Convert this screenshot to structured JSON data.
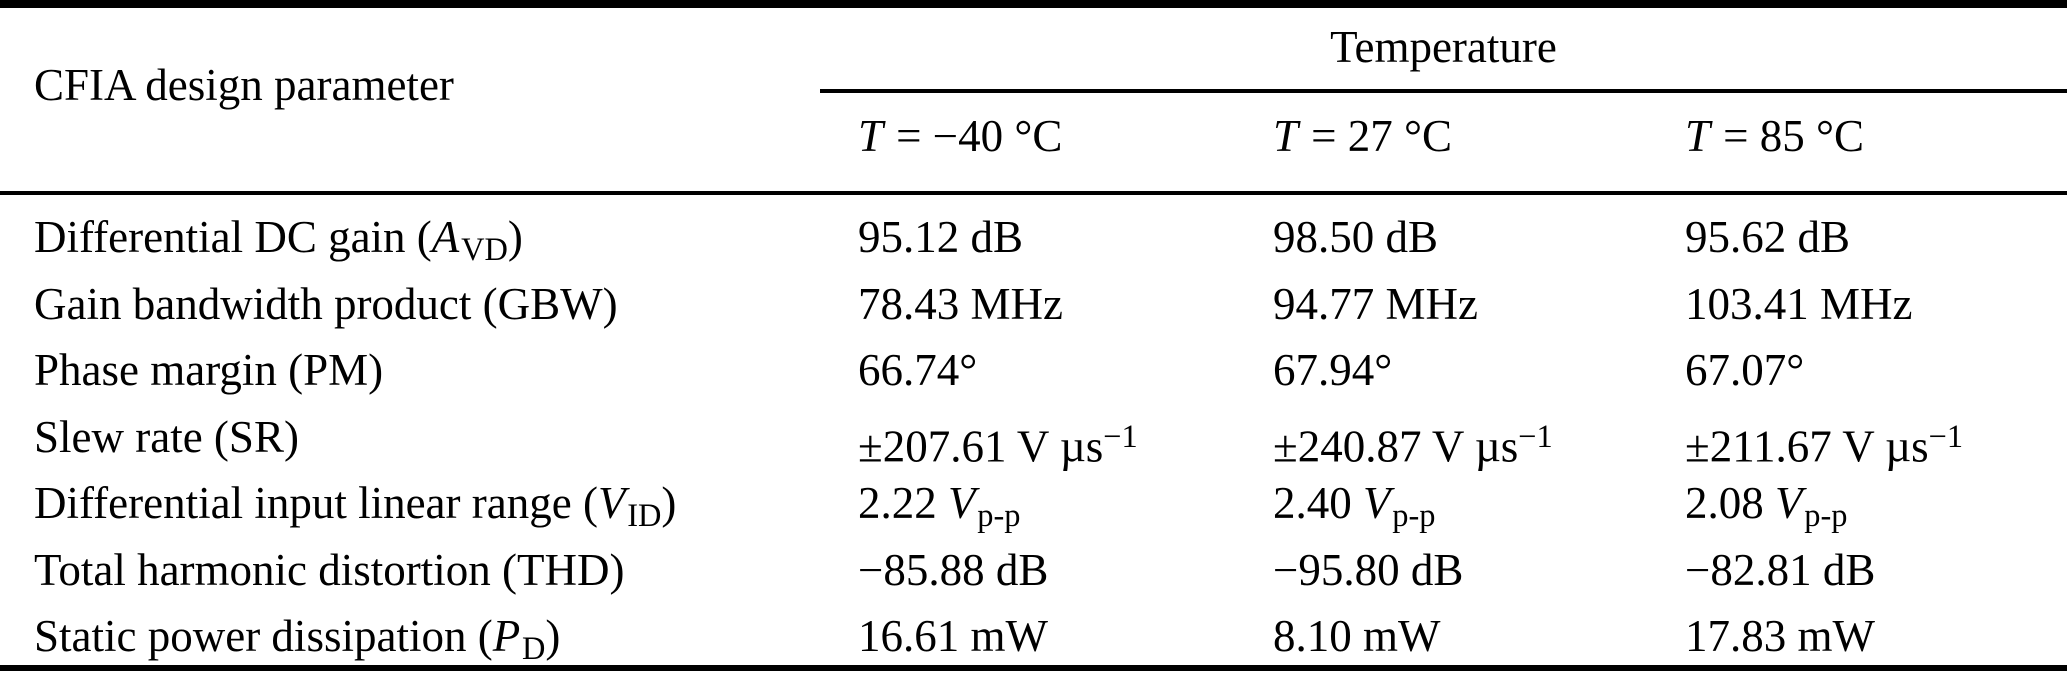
{
  "page": {
    "background": "#ffffff",
    "text_color": "#000000",
    "rule_color": "#000000"
  },
  "table": {
    "title_column_header": "CFIA design parameter",
    "group_header": "Temperature",
    "column_headers": [
      {
        "segments": [
          {
            "t": "T",
            "s": "i"
          },
          {
            "t": " = −40 °C"
          }
        ]
      },
      {
        "segments": [
          {
            "t": "T",
            "s": "i"
          },
          {
            "t": " = 27 °C"
          }
        ]
      },
      {
        "segments": [
          {
            "t": "T",
            "s": "i"
          },
          {
            "t": " = 85 °C"
          }
        ]
      }
    ],
    "rows": [
      {
        "label": [
          {
            "t": "Differential DC gain ("
          },
          {
            "t": "A",
            "s": "i"
          },
          {
            "t": "VD",
            "s": "sub"
          },
          {
            "t": ")"
          }
        ],
        "values": [
          [
            {
              "t": "95.12 dB"
            }
          ],
          [
            {
              "t": "98.50 dB"
            }
          ],
          [
            {
              "t": "95.62 dB"
            }
          ]
        ]
      },
      {
        "label": [
          {
            "t": "Gain bandwidth product (GBW)"
          }
        ],
        "values": [
          [
            {
              "t": "78.43 MHz"
            }
          ],
          [
            {
              "t": "94.77 MHz"
            }
          ],
          [
            {
              "t": "103.41 MHz"
            }
          ]
        ]
      },
      {
        "label": [
          {
            "t": "Phase margin (PM)"
          }
        ],
        "values": [
          [
            {
              "t": "66.74°"
            }
          ],
          [
            {
              "t": "67.94°"
            }
          ],
          [
            {
              "t": "67.07°"
            }
          ]
        ]
      },
      {
        "label": [
          {
            "t": "Slew rate (SR)"
          }
        ],
        "values": [
          [
            {
              "t": "±207.61 V µs"
            },
            {
              "t": "−1",
              "s": "sup"
            }
          ],
          [
            {
              "t": "±240.87 V µs"
            },
            {
              "t": "−1",
              "s": "sup"
            }
          ],
          [
            {
              "t": "±211.67 V µs"
            },
            {
              "t": "−1",
              "s": "sup"
            }
          ]
        ]
      },
      {
        "label": [
          {
            "t": "Differential input linear range ("
          },
          {
            "t": "V",
            "s": "i"
          },
          {
            "t": "ID",
            "s": "sub"
          },
          {
            "t": ")"
          }
        ],
        "values": [
          [
            {
              "t": "2.22 "
            },
            {
              "t": "V",
              "s": "i"
            },
            {
              "t": "p-p",
              "s": "sub"
            }
          ],
          [
            {
              "t": "2.40 "
            },
            {
              "t": "V",
              "s": "i"
            },
            {
              "t": "p-p",
              "s": "sub"
            }
          ],
          [
            {
              "t": "2.08 "
            },
            {
              "t": "V",
              "s": "i"
            },
            {
              "t": "p-p",
              "s": "sub"
            }
          ]
        ]
      },
      {
        "label": [
          {
            "t": "Total harmonic distortion (THD)"
          }
        ],
        "values": [
          [
            {
              "t": "−85.88 dB"
            }
          ],
          [
            {
              "t": "−95.80 dB"
            }
          ],
          [
            {
              "t": "−82.81 dB"
            }
          ]
        ]
      },
      {
        "label": [
          {
            "t": "Static power dissipation ("
          },
          {
            "t": "P",
            "s": "i"
          },
          {
            "t": "D",
            "s": "sub"
          },
          {
            "t": ")"
          }
        ],
        "values": [
          [
            {
              "t": "16.61 mW"
            }
          ],
          [
            {
              "t": "8.10 mW"
            }
          ],
          [
            {
              "t": "17.83 mW"
            }
          ]
        ]
      }
    ]
  }
}
